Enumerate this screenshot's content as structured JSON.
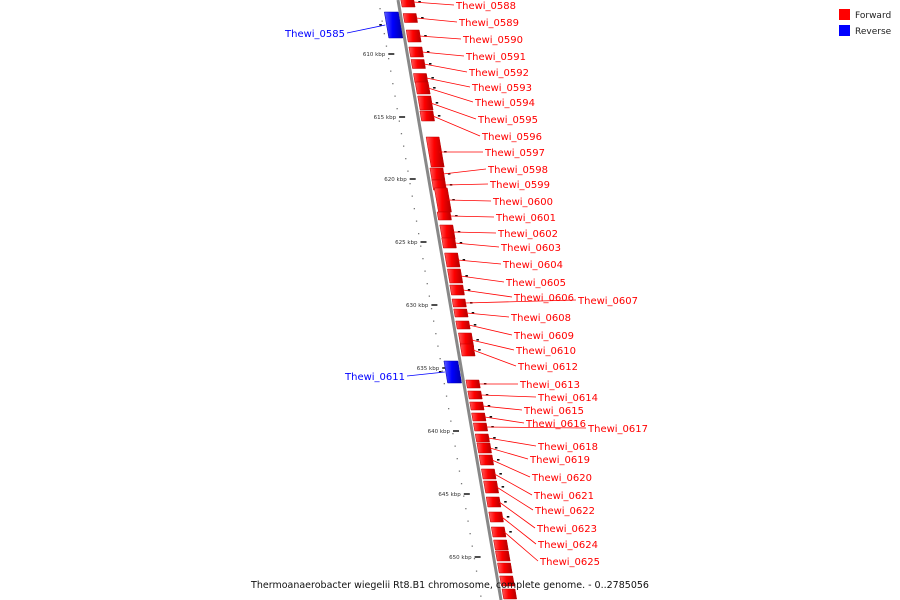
{
  "caption": "Thermoanaerobacter wiegelii Rt8.B1 chromosome, complete genome. - 0..2785056",
  "legend": [
    {
      "label": "Forward",
      "color": "#ff0000"
    },
    {
      "label": "Reverse",
      "color": "#0000ff"
    }
  ],
  "colors": {
    "forward": "#ff0000",
    "reverse": "#0000ff",
    "backbone": "#888888",
    "ticks": "#222222"
  },
  "ticks": [
    {
      "label": "610 kbp"
    },
    {
      "label": "615 kbp"
    },
    {
      "label": "620 kbp"
    },
    {
      "label": "625 kbp"
    },
    {
      "label": "630 kbp"
    },
    {
      "label": "635 kbp"
    },
    {
      "label": "640 kbp"
    },
    {
      "label": "645 kbp"
    },
    {
      "label": "650 kbp"
    }
  ],
  "genes": [
    {
      "name": "Thewi_0585",
      "strand": "reverse"
    },
    {
      "name": "Thewi_0588",
      "strand": "forward"
    },
    {
      "name": "Thewi_0589",
      "strand": "forward"
    },
    {
      "name": "Thewi_0590",
      "strand": "forward"
    },
    {
      "name": "Thewi_0591",
      "strand": "forward"
    },
    {
      "name": "Thewi_0592",
      "strand": "forward"
    },
    {
      "name": "Thewi_0593",
      "strand": "forward"
    },
    {
      "name": "Thewi_0594",
      "strand": "forward"
    },
    {
      "name": "Thewi_0595",
      "strand": "forward"
    },
    {
      "name": "Thewi_0596",
      "strand": "forward"
    },
    {
      "name": "Thewi_0597",
      "strand": "forward"
    },
    {
      "name": "Thewi_0598",
      "strand": "forward"
    },
    {
      "name": "Thewi_0599",
      "strand": "forward"
    },
    {
      "name": "Thewi_0600",
      "strand": "forward"
    },
    {
      "name": "Thewi_0601",
      "strand": "forward"
    },
    {
      "name": "Thewi_0602",
      "strand": "forward"
    },
    {
      "name": "Thewi_0603",
      "strand": "forward"
    },
    {
      "name": "Thewi_0604",
      "strand": "forward"
    },
    {
      "name": "Thewi_0605",
      "strand": "forward"
    },
    {
      "name": "Thewi_0606",
      "strand": "forward"
    },
    {
      "name": "Thewi_0607",
      "strand": "forward"
    },
    {
      "name": "Thewi_0608",
      "strand": "forward"
    },
    {
      "name": "Thewi_0609",
      "strand": "forward"
    },
    {
      "name": "Thewi_0610",
      "strand": "forward"
    },
    {
      "name": "Thewi_0611",
      "strand": "reverse"
    },
    {
      "name": "Thewi_0612",
      "strand": "forward"
    },
    {
      "name": "Thewi_0613",
      "strand": "forward"
    },
    {
      "name": "Thewi_0614",
      "strand": "forward"
    },
    {
      "name": "Thewi_0615",
      "strand": "forward"
    },
    {
      "name": "Thewi_0616",
      "strand": "forward"
    },
    {
      "name": "Thewi_0617",
      "strand": "forward"
    },
    {
      "name": "Thewi_0618",
      "strand": "forward"
    },
    {
      "name": "Thewi_0619",
      "strand": "forward"
    },
    {
      "name": "Thewi_0620",
      "strand": "forward"
    },
    {
      "name": "Thewi_0621",
      "strand": "forward"
    },
    {
      "name": "Thewi_0622",
      "strand": "forward"
    },
    {
      "name": "Thewi_0623",
      "strand": "forward"
    },
    {
      "name": "Thewi_0624",
      "strand": "forward"
    },
    {
      "name": "Thewi_0625",
      "strand": "forward"
    }
  ]
}
